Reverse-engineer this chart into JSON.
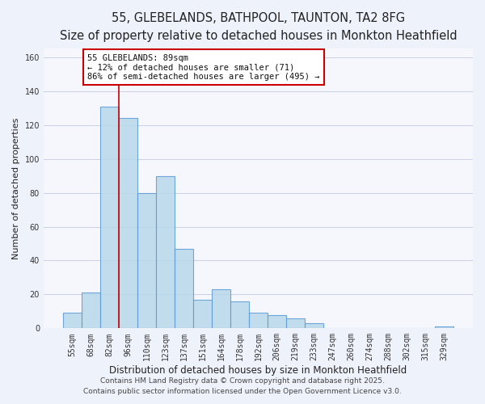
{
  "title": "55, GLEBELANDS, BATHPOOL, TAUNTON, TA2 8FG",
  "subtitle": "Size of property relative to detached houses in Monkton Heathfield",
  "xlabel": "Distribution of detached houses by size in Monkton Heathfield",
  "ylabel": "Number of detached properties",
  "bar_labels": [
    "55sqm",
    "68sqm",
    "82sqm",
    "96sqm",
    "110sqm",
    "123sqm",
    "137sqm",
    "151sqm",
    "164sqm",
    "178sqm",
    "192sqm",
    "206sqm",
    "219sqm",
    "233sqm",
    "247sqm",
    "260sqm",
    "274sqm",
    "288sqm",
    "302sqm",
    "315sqm",
    "329sqm"
  ],
  "bar_values": [
    9,
    21,
    131,
    124,
    80,
    90,
    47,
    17,
    23,
    16,
    9,
    8,
    6,
    3,
    0,
    0,
    0,
    0,
    0,
    0,
    1
  ],
  "bar_color": "#b8d8ea",
  "bar_edgecolor": "#5b9bd5",
  "bar_alpha": 0.85,
  "vline_color": "#cc0000",
  "annotation_title": "55 GLEBELANDS: 89sqm",
  "annotation_line1": "← 12% of detached houses are smaller (71)",
  "annotation_line2": "86% of semi-detached houses are larger (495) →",
  "annotation_box_color": "#ffffff",
  "annotation_box_edgecolor": "#cc0000",
  "ylim": [
    0,
    165
  ],
  "yticks": [
    0,
    20,
    40,
    60,
    80,
    100,
    120,
    140,
    160
  ],
  "footer1": "Contains HM Land Registry data © Crown copyright and database right 2025.",
  "footer2": "Contains public sector information licensed under the Open Government Licence v3.0.",
  "bg_color": "#eef2fb",
  "plot_bg_color": "#f5f7fc",
  "grid_color": "#c8cfe8",
  "title_fontsize": 10.5,
  "subtitle_fontsize": 8.5,
  "xlabel_fontsize": 8.5,
  "ylabel_fontsize": 8,
  "tick_fontsize": 7,
  "annotation_fontsize": 7.5,
  "footer_fontsize": 6.5
}
